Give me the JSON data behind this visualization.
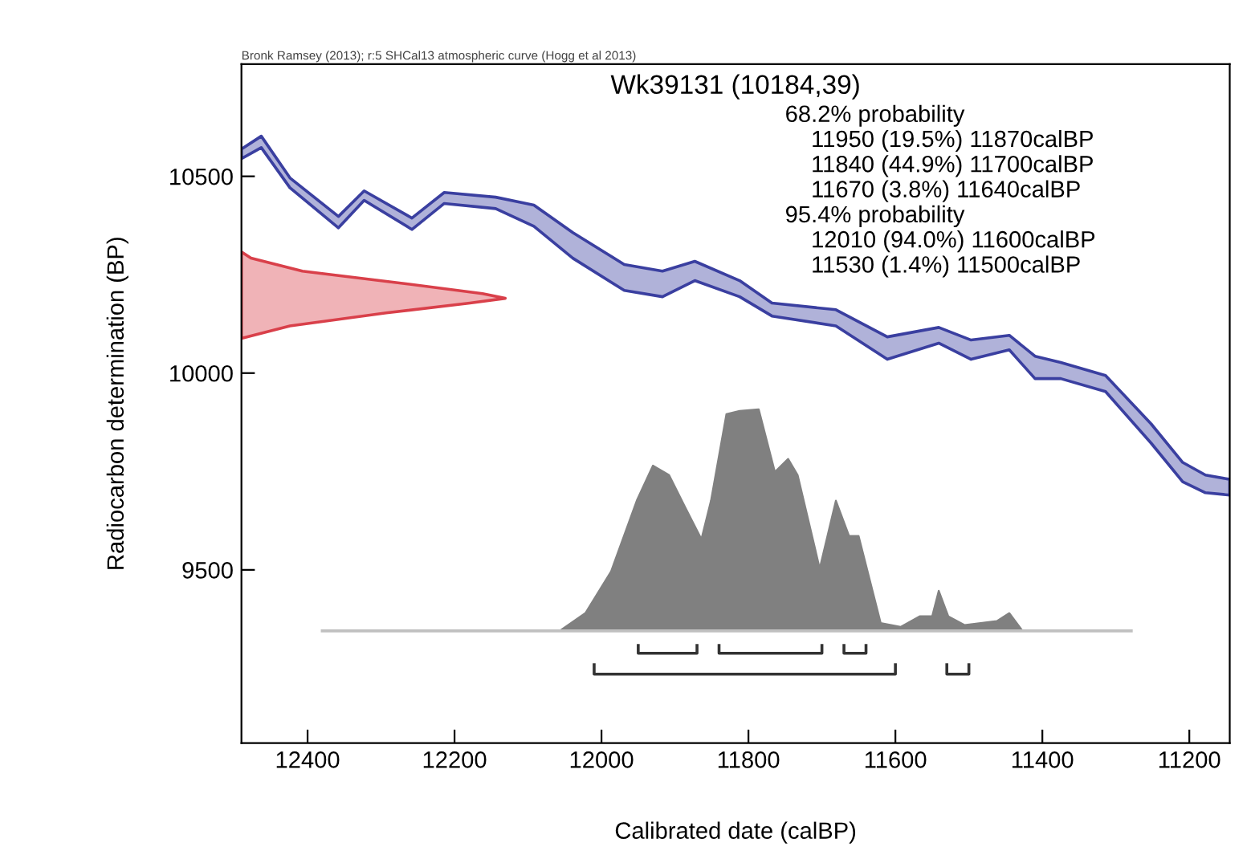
{
  "chart_data": {
    "type": "area",
    "title": "Wk39131 (10184,39)",
    "xlabel": "Calibrated date (calBP)",
    "ylabel": "Radiocarbon determination (BP)",
    "annotations": [
      "Bronk Ramsey (2013); r:5 SHCal13 atmospheric curve (Hogg et al 2013)",
      "68.2% probability",
      "    11950 (19.5%) 11870calBP",
      "    11840 (44.9%) 11700calBP",
      "    11670 (3.8%) 11640calBP",
      "95.4% probability",
      "    12010 (94.0%) 11600calBP",
      "    11530 (1.4%) 11500calBP"
    ],
    "xlim": [
      12490,
      11145
    ],
    "ylim": [
      9060,
      10785
    ],
    "xticks": [
      12400,
      12200,
      12000,
      11800,
      11600,
      11400,
      11200
    ],
    "yticks": [
      9500,
      10000,
      10500
    ],
    "grid": false,
    "legend": false,
    "series": [
      {
        "type": "area",
        "color": "#3a3fa0",
        "line_style": "solid",
        "x": [
          12490,
          12463,
          12424,
          12358,
          12323,
          12258,
          12214,
          12144,
          12092,
          12039,
          11969,
          11917,
          11873,
          11812,
          11768,
          11681,
          11611,
          11541,
          11497,
          11445,
          11410,
          11375,
          11314,
          11252,
          11209,
          11178,
          11145,
          11145,
          11178,
          11209,
          11252,
          11314,
          11375,
          11410,
          11445,
          11497,
          11541,
          11611,
          11681,
          11768,
          11812,
          11873,
          11917,
          11969,
          12039,
          12092,
          12144,
          12214,
          12258,
          12323,
          12358,
          12424,
          12463,
          12490
        ],
        "values": [
          10569,
          10602,
          10496,
          10398,
          10463,
          10394,
          10459,
          10447,
          10427,
          10357,
          10276,
          10259,
          10284,
          10235,
          10178,
          10161,
          10092,
          10116,
          10084,
          10096,
          10043,
          10027,
          9994,
          9871,
          9773,
          9741,
          9730,
          9690,
          9696,
          9724,
          9822,
          9953,
          9986,
          9986,
          10059,
          10035,
          10076,
          10035,
          10120,
          10145,
          10194,
          10235,
          10194,
          10210,
          10292,
          10373,
          10418,
          10431,
          10365,
          10439,
          10369,
          10471,
          10573,
          10545
        ]
      },
      {
        "type": "area",
        "color": "#d9404a",
        "line_style": "solid",
        "x": [
          12490,
          12477,
          12407,
          12266,
          12162,
          12131,
          12179,
          12293,
          12424,
          12490
        ],
        "values": [
          10308,
          10292,
          10259,
          10227,
          10202,
          10190,
          10178,
          10153,
          10120,
          10088
        ]
      },
      {
        "type": "line",
        "color": "#c0c0c0",
        "x": [
          12380,
          11279
        ],
        "values": [
          9345,
          9345
        ]
      },
      {
        "color": "#808080",
        "x": [
          12057,
          12022,
          11987,
          11952,
          11930,
          11908,
          11886,
          11864,
          11851,
          11830,
          11812,
          11786,
          11764,
          11746,
          11733,
          11703,
          11681,
          11663,
          11650,
          11620,
          11593,
          11567,
          11550,
          11541,
          11528,
          11506,
          11462,
          11445,
          11427
        ],
        "values": [
          9345,
          9390,
          9496,
          9676,
          9765,
          9741,
          9659,
          9578,
          9676,
          9896,
          9904,
          9908,
          9749,
          9782,
          9741,
          9504,
          9676,
          9586,
          9586,
          9365,
          9355,
          9382,
          9382,
          9447,
          9382,
          9360,
          9370,
          9390,
          9345
        ]
      },
      {
        "type": "line",
        "color": "#333333",
        "x": [
          11950,
          11950,
          11870,
          11870
        ],
        "values": [
          9308,
          9288,
          9288,
          9308
        ]
      },
      {
        "type": "line",
        "color": "#333333",
        "x": [
          11840,
          11840,
          11700,
          11700
        ],
        "values": [
          9308,
          9288,
          9288,
          9308
        ]
      },
      {
        "type": "line",
        "color": "#333333",
        "x": [
          11670,
          11670,
          11640,
          11640
        ],
        "values": [
          9308,
          9288,
          9288,
          9308
        ]
      },
      {
        "type": "line",
        "color": "#333333",
        "x": [
          12010,
          12010,
          11600,
          11600
        ],
        "values": [
          9259,
          9235,
          9235,
          9259
        ]
      },
      {
        "type": "line",
        "color": "#333333",
        "x": [
          11530,
          11530,
          11500,
          11500
        ],
        "values": [
          9259,
          9235,
          9235,
          9259
        ]
      }
    ]
  }
}
